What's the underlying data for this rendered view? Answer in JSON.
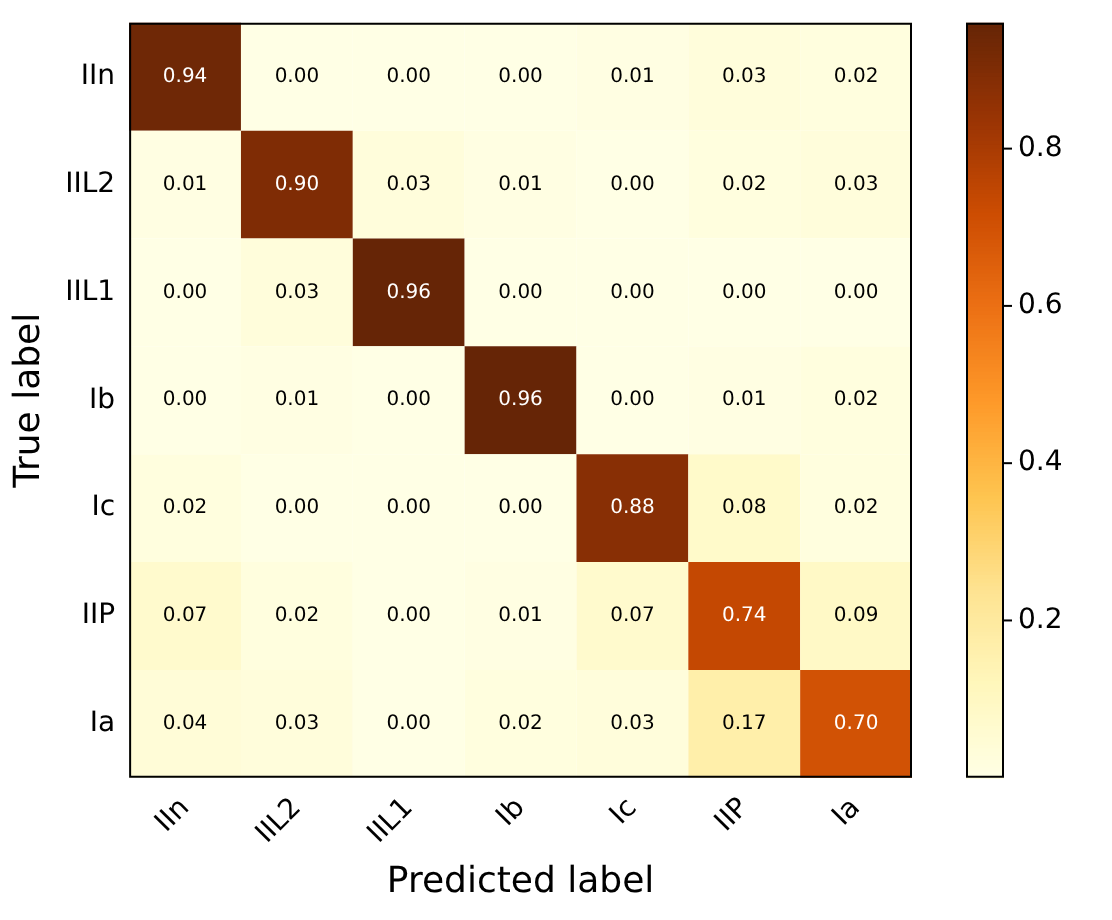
{
  "chart_data": {
    "type": "heatmap",
    "xlabel": "Predicted label",
    "ylabel": "True label",
    "categories": [
      "IIn",
      "IIL2",
      "IIL1",
      "Ib",
      "Ic",
      "IIP",
      "Ia"
    ],
    "y_categories": [
      "IIn",
      "IIL2",
      "IIL1",
      "Ib",
      "Ic",
      "IIP",
      "Ia"
    ],
    "cells": [
      [
        0.94,
        0.0,
        0.0,
        0.0,
        0.01,
        0.03,
        0.02
      ],
      [
        0.01,
        0.9,
        0.03,
        0.01,
        0.0,
        0.02,
        0.03
      ],
      [
        0.0,
        0.03,
        0.96,
        0.0,
        0.0,
        0.0,
        0.0
      ],
      [
        0.0,
        0.01,
        0.0,
        0.96,
        0.0,
        0.01,
        0.02
      ],
      [
        0.02,
        0.0,
        0.0,
        0.0,
        0.88,
        0.08,
        0.02
      ],
      [
        0.07,
        0.02,
        0.0,
        0.01,
        0.07,
        0.74,
        0.09
      ],
      [
        0.04,
        0.03,
        0.0,
        0.02,
        0.03,
        0.17,
        0.7
      ]
    ],
    "cell_labels": [
      [
        "0.94",
        "0.00",
        "0.00",
        "0.00",
        "0.01",
        "0.03",
        "0.02"
      ],
      [
        "0.01",
        "0.90",
        "0.03",
        "0.01",
        "0.00",
        "0.02",
        "0.03"
      ],
      [
        "0.00",
        "0.03",
        "0.96",
        "0.00",
        "0.00",
        "0.00",
        "0.00"
      ],
      [
        "0.00",
        "0.01",
        "0.00",
        "0.96",
        "0.00",
        "0.01",
        "0.02"
      ],
      [
        "0.02",
        "0.00",
        "0.00",
        "0.00",
        "0.88",
        "0.08",
        "0.02"
      ],
      [
        "0.07",
        "0.02",
        "0.00",
        "0.01",
        "0.07",
        "0.74",
        "0.09"
      ],
      [
        "0.04",
        "0.03",
        "0.00",
        "0.02",
        "0.03",
        "0.17",
        "0.70"
      ]
    ],
    "clim": [
      0,
      0.96
    ],
    "cticks": [
      0.2,
      0.4,
      0.6,
      0.8
    ]
  }
}
